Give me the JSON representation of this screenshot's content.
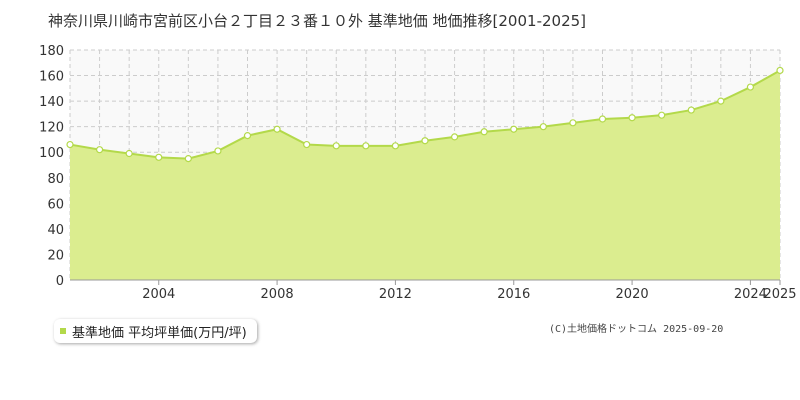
{
  "title": "神奈川県川崎市宮前区小台２丁目２３番１０外 基準地価 地価推移[2001-2025]",
  "credit": "(C)土地価格ドットコム 2025-09-20",
  "colors": {
    "fill": "#dbed8f",
    "line": "#b3d94a",
    "point_fill": "#ffffff",
    "grid": "#cccccc",
    "plot_bg": "#f9f9f9"
  },
  "chart_data": {
    "type": "area",
    "title": "神奈川県川崎市宮前区小台２丁目２３番１０外 基準地価 地価推移[2001-2025]",
    "xlabel": "",
    "ylabel": "",
    "xlim": [
      2001,
      2025
    ],
    "ylim": [
      0,
      180
    ],
    "y_ticks": [
      0,
      20,
      40,
      60,
      80,
      100,
      120,
      140,
      160,
      180
    ],
    "x_tick_labels": [
      "2004",
      "2008",
      "2012",
      "2016",
      "2020",
      "2024",
      "2025"
    ],
    "x_tick_values": [
      2004,
      2008,
      2012,
      2016,
      2020,
      2024,
      2025
    ],
    "grid": true,
    "legend_position": "bottom-left",
    "series": [
      {
        "name": "基準地価 平均坪単価(万円/坪)",
        "x": [
          2001,
          2002,
          2003,
          2004,
          2005,
          2006,
          2007,
          2008,
          2009,
          2010,
          2011,
          2012,
          2013,
          2014,
          2015,
          2016,
          2017,
          2018,
          2019,
          2020,
          2021,
          2022,
          2023,
          2024,
          2025
        ],
        "values": [
          106,
          102,
          99,
          96,
          95,
          101,
          113,
          118,
          106,
          105,
          105,
          105,
          109,
          112,
          116,
          118,
          120,
          123,
          126,
          127,
          129,
          133,
          140,
          151,
          164
        ]
      }
    ]
  }
}
